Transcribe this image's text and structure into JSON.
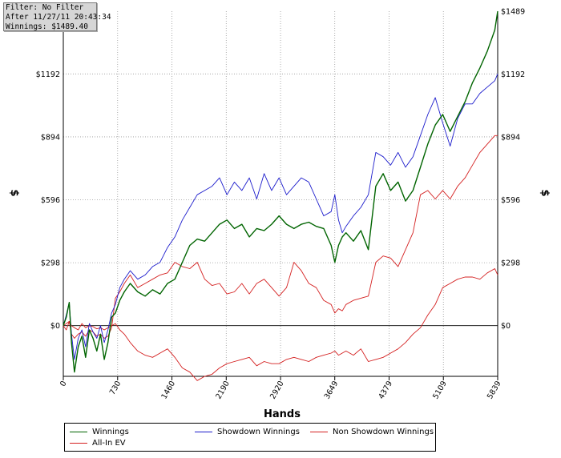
{
  "filter_box": {
    "line1": "Filter: No Filter",
    "line2": "After 11/27/11 20:43:34",
    "line3": "Winnings: $1489.40"
  },
  "legend": {
    "items": [
      {
        "label": "Winnings",
        "color": "#006400"
      },
      {
        "label": "Showdown Winnings",
        "color": "#1c1ccc"
      },
      {
        "label": "Non Showdown Winnings",
        "color": "#d42020"
      },
      {
        "label": "All-In EV",
        "color": "#d42020"
      }
    ]
  },
  "chart_data": {
    "type": "line",
    "xlabel": "Hands",
    "ylabel": "$",
    "x_ticks": [
      "0",
      "730",
      "1460",
      "2190",
      "2920",
      "3649",
      "4379",
      "5109",
      "5839"
    ],
    "y_ticks": [
      "$0",
      "$298",
      "$596",
      "$894",
      "$1192",
      "$1489"
    ],
    "xlim": [
      0,
      5839
    ],
    "ylim": [
      -240,
      1489
    ],
    "grid": true,
    "legend_position": "bottom",
    "series": [
      {
        "name": "Winnings",
        "color": "#006400",
        "x": [
          0,
          40,
          80,
          110,
          150,
          200,
          250,
          300,
          350,
          400,
          450,
          500,
          550,
          600,
          650,
          700,
          760,
          820,
          900,
          1000,
          1100,
          1200,
          1300,
          1400,
          1500,
          1600,
          1700,
          1800,
          1900,
          2000,
          2100,
          2200,
          2300,
          2400,
          2500,
          2600,
          2700,
          2800,
          2900,
          3000,
          3100,
          3200,
          3300,
          3400,
          3500,
          3600,
          3650,
          3700,
          3750,
          3800,
          3900,
          4000,
          4100,
          4200,
          4300,
          4400,
          4500,
          4600,
          4700,
          4800,
          4900,
          5000,
          5100,
          5200,
          5300,
          5400,
          5500,
          5600,
          5700,
          5800,
          5839
        ],
        "y": [
          0,
          40,
          110,
          -80,
          -220,
          -100,
          -50,
          -150,
          -20,
          -60,
          -120,
          -40,
          -160,
          -80,
          40,
          60,
          120,
          160,
          200,
          160,
          140,
          170,
          150,
          200,
          220,
          300,
          380,
          410,
          400,
          440,
          480,
          500,
          460,
          480,
          420,
          460,
          450,
          480,
          520,
          480,
          460,
          480,
          490,
          470,
          460,
          380,
          300,
          380,
          420,
          440,
          400,
          450,
          360,
          660,
          720,
          640,
          680,
          590,
          640,
          750,
          860,
          950,
          1000,
          920,
          990,
          1060,
          1150,
          1220,
          1300,
          1400,
          1489
        ]
      },
      {
        "name": "Showdown Winnings",
        "color": "#1c1ccc",
        "x": [
          0,
          40,
          80,
          110,
          150,
          200,
          250,
          300,
          350,
          400,
          450,
          500,
          550,
          600,
          650,
          700,
          760,
          820,
          900,
          1000,
          1100,
          1200,
          1300,
          1400,
          1500,
          1600,
          1700,
          1800,
          1900,
          2000,
          2100,
          2200,
          2300,
          2400,
          2500,
          2600,
          2700,
          2800,
          2900,
          3000,
          3100,
          3200,
          3300,
          3400,
          3500,
          3600,
          3650,
          3700,
          3750,
          3800,
          3900,
          4000,
          4100,
          4200,
          4300,
          4400,
          4500,
          4600,
          4700,
          4800,
          4900,
          5000,
          5100,
          5200,
          5300,
          5400,
          5500,
          5600,
          5700,
          5800,
          5839
        ],
        "y": [
          0,
          50,
          110,
          -40,
          -160,
          -60,
          -20,
          -100,
          10,
          -30,
          -60,
          0,
          -80,
          -20,
          60,
          100,
          180,
          220,
          260,
          220,
          240,
          280,
          300,
          370,
          420,
          500,
          560,
          620,
          640,
          660,
          700,
          620,
          680,
          640,
          700,
          600,
          720,
          640,
          700,
          620,
          660,
          700,
          680,
          600,
          520,
          540,
          620,
          500,
          440,
          470,
          520,
          560,
          620,
          820,
          800,
          760,
          820,
          750,
          800,
          900,
          1000,
          1080,
          960,
          850,
          980,
          1050,
          1050,
          1100,
          1130,
          1160,
          1192
        ]
      },
      {
        "name": "Non Showdown Winnings",
        "color": "#d42020",
        "x": [
          0,
          40,
          80,
          110,
          150,
          200,
          250,
          300,
          350,
          400,
          450,
          500,
          550,
          600,
          650,
          700,
          760,
          820,
          900,
          1000,
          1100,
          1200,
          1300,
          1400,
          1500,
          1600,
          1700,
          1800,
          1900,
          2000,
          2100,
          2200,
          2300,
          2400,
          2500,
          2600,
          2700,
          2800,
          2900,
          3000,
          3100,
          3200,
          3300,
          3400,
          3500,
          3600,
          3650,
          3700,
          3750,
          3800,
          3900,
          4000,
          4100,
          4200,
          4300,
          4400,
          4500,
          4600,
          4700,
          4800,
          4900,
          5000,
          5100,
          5200,
          5300,
          5400,
          5500,
          5600,
          5700,
          5800,
          5839
        ],
        "y": [
          0,
          -20,
          20,
          -40,
          -60,
          -40,
          -30,
          -50,
          -20,
          -30,
          -50,
          -40,
          -60,
          -50,
          -10,
          130,
          160,
          200,
          240,
          180,
          200,
          220,
          240,
          250,
          300,
          280,
          270,
          300,
          220,
          190,
          200,
          150,
          160,
          200,
          150,
          200,
          220,
          180,
          140,
          180,
          300,
          260,
          200,
          180,
          120,
          100,
          60,
          80,
          70,
          100,
          120,
          130,
          140,
          300,
          330,
          320,
          280,
          360,
          440,
          620,
          640,
          600,
          640,
          600,
          660,
          700,
          760,
          820,
          860,
          900,
          900
        ]
      },
      {
        "name": "All-In EV",
        "color": "#d42020",
        "x": [
          0,
          40,
          80,
          110,
          150,
          200,
          250,
          300,
          350,
          400,
          450,
          500,
          550,
          600,
          650,
          700,
          760,
          820,
          900,
          1000,
          1100,
          1200,
          1300,
          1400,
          1500,
          1600,
          1700,
          1800,
          1900,
          2000,
          2100,
          2200,
          2300,
          2400,
          2500,
          2600,
          2700,
          2800,
          2900,
          3000,
          3100,
          3200,
          3300,
          3400,
          3500,
          3600,
          3650,
          3700,
          3750,
          3800,
          3900,
          4000,
          4100,
          4200,
          4300,
          4400,
          4500,
          4600,
          4700,
          4800,
          4900,
          5000,
          5100,
          5200,
          5300,
          5400,
          5500,
          5600,
          5700,
          5800,
          5839
        ],
        "y": [
          0,
          10,
          20,
          0,
          -10,
          -20,
          10,
          -10,
          0,
          -5,
          -15,
          -10,
          -20,
          -10,
          0,
          10,
          -20,
          -40,
          -80,
          -120,
          -140,
          -150,
          -130,
          -110,
          -150,
          -200,
          -220,
          -260,
          -240,
          -230,
          -200,
          -180,
          -170,
          -160,
          -150,
          -190,
          -170,
          -180,
          -180,
          -160,
          -150,
          -160,
          -170,
          -150,
          -140,
          -130,
          -120,
          -140,
          -130,
          -120,
          -140,
          -110,
          -170,
          -160,
          -150,
          -130,
          -110,
          -80,
          -40,
          -10,
          50,
          100,
          180,
          200,
          220,
          230,
          230,
          220,
          250,
          270,
          240
        ]
      }
    ]
  }
}
